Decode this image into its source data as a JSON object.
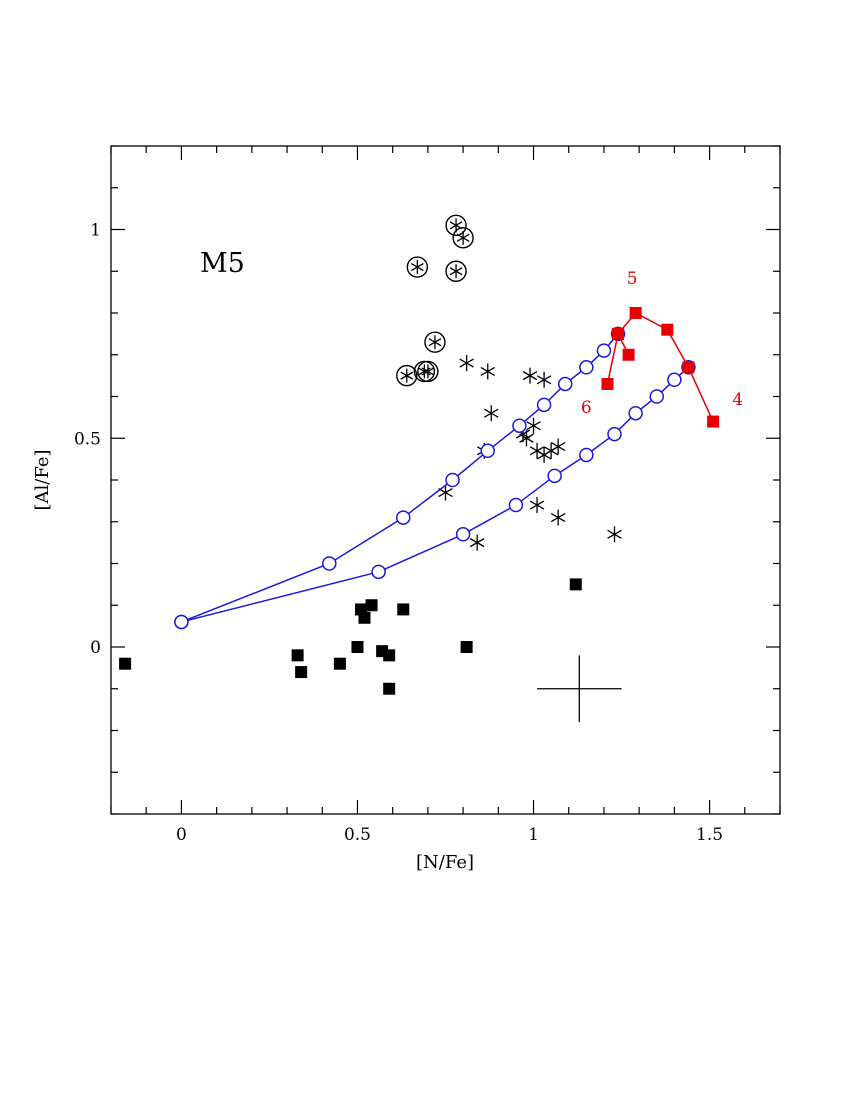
{
  "chart_data": {
    "type": "scatter",
    "xlabel": "[N/Fe]",
    "ylabel": "[Al/Fe]",
    "xlim": [
      -0.2,
      1.7
    ],
    "ylim": [
      -0.4,
      1.2
    ],
    "x_ticks": [
      0,
      0.5,
      1,
      1.5
    ],
    "x_tick_labels": [
      "0",
      "0.5",
      "1",
      "1.5"
    ],
    "y_ticks": [
      0,
      0.5,
      1
    ],
    "y_tick_labels": [
      "0",
      "0.5",
      "1"
    ],
    "x_minor_step": 0.1,
    "y_minor_step": 0.1,
    "grid": false,
    "annotation": "M5",
    "colors": {
      "black": "#000000",
      "blue": "#1a1adb",
      "red": "#e60000"
    },
    "series": [
      {
        "marker": "filled-square",
        "color": "#000000",
        "points": [
          [
            -0.16,
            -0.04
          ],
          [
            0.33,
            -0.02
          ],
          [
            0.34,
            -0.06
          ],
          [
            0.45,
            -0.04
          ],
          [
            0.5,
            0.0
          ],
          [
            0.51,
            0.09
          ],
          [
            0.52,
            0.07
          ],
          [
            0.54,
            0.1
          ],
          [
            0.57,
            -0.01
          ],
          [
            0.59,
            -0.02
          ],
          [
            0.59,
            -0.1
          ],
          [
            0.63,
            0.09
          ],
          [
            0.81,
            0.0
          ],
          [
            1.12,
            0.15
          ]
        ]
      },
      {
        "marker": "star",
        "color": "#000000",
        "points": [
          [
            0.75,
            0.37
          ],
          [
            0.81,
            0.68
          ],
          [
            0.84,
            0.25
          ],
          [
            0.86,
            0.47
          ],
          [
            0.87,
            0.66
          ],
          [
            0.88,
            0.56
          ],
          [
            0.97,
            0.51
          ],
          [
            0.98,
            0.5
          ],
          [
            0.99,
            0.65
          ],
          [
            1.0,
            0.53
          ],
          [
            1.01,
            0.34
          ],
          [
            1.01,
            0.47
          ],
          [
            1.03,
            0.46
          ],
          [
            1.03,
            0.64
          ],
          [
            1.05,
            0.47
          ],
          [
            1.07,
            0.48
          ],
          [
            1.07,
            0.31
          ],
          [
            1.23,
            0.27
          ]
        ]
      },
      {
        "marker": "circled-star",
        "color": "#000000",
        "points": [
          [
            0.64,
            0.65
          ],
          [
            0.67,
            0.91
          ],
          [
            0.69,
            0.66
          ],
          [
            0.7,
            0.66
          ],
          [
            0.72,
            0.73
          ],
          [
            0.78,
            1.01
          ],
          [
            0.78,
            0.9
          ],
          [
            0.8,
            0.98
          ]
        ]
      },
      {
        "marker": "open-circle-line",
        "color": "#1a1adb",
        "points": [
          [
            0.0,
            0.06
          ],
          [
            0.42,
            0.2
          ],
          [
            0.63,
            0.31
          ],
          [
            0.77,
            0.4
          ],
          [
            0.87,
            0.47
          ],
          [
            0.96,
            0.53
          ],
          [
            1.03,
            0.58
          ],
          [
            1.09,
            0.63
          ],
          [
            1.15,
            0.67
          ],
          [
            1.2,
            0.71
          ],
          [
            1.24,
            0.75
          ]
        ]
      },
      {
        "marker": "open-circle-line",
        "color": "#1a1adb",
        "points": [
          [
            0.0,
            0.06
          ],
          [
            0.56,
            0.18
          ],
          [
            0.8,
            0.27
          ],
          [
            0.95,
            0.34
          ],
          [
            1.06,
            0.41
          ],
          [
            1.15,
            0.46
          ],
          [
            1.23,
            0.51
          ],
          [
            1.29,
            0.56
          ],
          [
            1.35,
            0.6
          ],
          [
            1.4,
            0.64
          ],
          [
            1.44,
            0.67
          ]
        ]
      },
      {
        "marker": "filled-square-line",
        "color": "#e60000",
        "points": [
          [
            1.21,
            0.63
          ],
          [
            1.24,
            0.75
          ],
          [
            1.29,
            0.8
          ],
          [
            1.38,
            0.76
          ],
          [
            1.44,
            0.67
          ],
          [
            1.51,
            0.54
          ]
        ]
      },
      {
        "marker": "filled-square-line",
        "color": "#e60000",
        "points": [
          [
            1.24,
            0.75
          ],
          [
            1.27,
            0.7
          ]
        ]
      }
    ],
    "point_labels": [
      {
        "text": "5",
        "x": 1.28,
        "y": 0.87
      },
      {
        "text": "6",
        "x": 1.15,
        "y": 0.56
      },
      {
        "text": "4",
        "x": 1.58,
        "y": 0.58
      }
    ],
    "error_bar": {
      "x": 1.13,
      "y": -0.1,
      "xerr": 0.12,
      "yerr": 0.08
    }
  }
}
